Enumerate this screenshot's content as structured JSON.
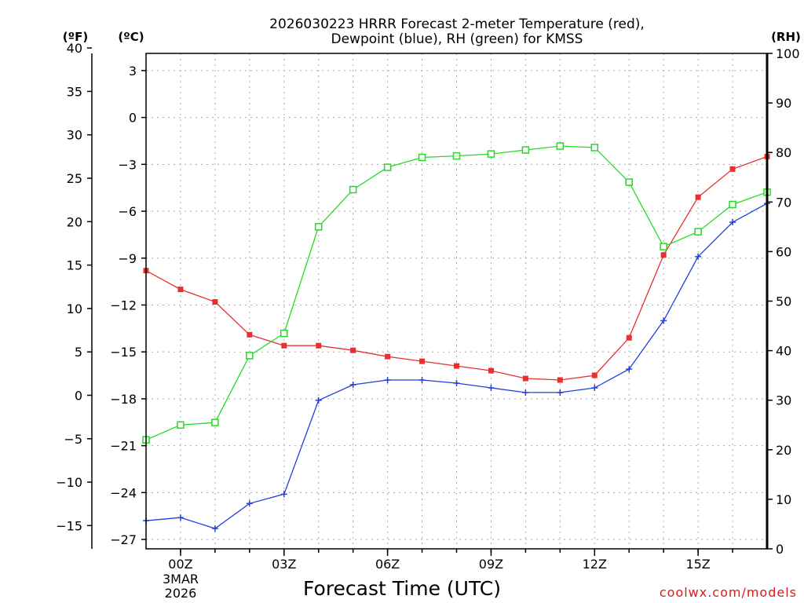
{
  "chart_data": {
    "type": "line",
    "title_line1": "2026030223 HRRR Forecast 2-meter Temperature (red),",
    "title_line2": "Dewpoint (blue), RH (green) for KMSS",
    "xlabel": "Forecast Time (UTC)",
    "credit": "coolwx.com/models",
    "unit_labels": {
      "fahrenheit": "(ºF)",
      "celsius": "(ºC)",
      "rh": "(RH)"
    },
    "date_label": {
      "day": "3MAR",
      "year": "2026"
    },
    "x_hours": [
      -1,
      0,
      1,
      2,
      3,
      4,
      5,
      6,
      7,
      8,
      9,
      10,
      11,
      12,
      13,
      14,
      15,
      16,
      17
    ],
    "x_ticks": [
      {
        "hour": 0,
        "label": "00Z"
      },
      {
        "hour": 3,
        "label": "03Z"
      },
      {
        "hour": 6,
        "label": "06Z"
      },
      {
        "hour": 9,
        "label": "09Z"
      },
      {
        "hour": 12,
        "label": "12Z"
      },
      {
        "hour": 15,
        "label": "15Z"
      }
    ],
    "xlim": [
      -1,
      17
    ],
    "celsius_axis": {
      "range": [
        -27.6,
        4.1
      ],
      "ticks": [
        3,
        0,
        -3,
        -6,
        -9,
        -12,
        -15,
        -18,
        -21,
        -24,
        -27
      ]
    },
    "fahrenheit_axis": {
      "range": [
        -17.68,
        39.38
      ],
      "ticks": [
        40,
        35,
        30,
        25,
        20,
        15,
        10,
        5,
        0,
        -5,
        -10,
        -15
      ]
    },
    "rh_axis": {
      "range": [
        0,
        100
      ],
      "ticks": [
        100,
        90,
        80,
        70,
        60,
        50,
        40,
        30,
        20,
        10,
        0
      ]
    },
    "series": [
      {
        "name": "2-meter Temperature",
        "units": "C",
        "color": "#e83030",
        "marker": "filled-square",
        "values": [
          -9.8,
          -11.0,
          -11.8,
          -13.9,
          -14.6,
          -14.6,
          -14.9,
          -15.3,
          -15.6,
          -15.9,
          -16.2,
          -16.7,
          -16.8,
          -16.5,
          -14.1,
          -8.8,
          -5.1,
          -3.3,
          -2.5
        ]
      },
      {
        "name": "Dewpoint",
        "units": "C",
        "color": "#2040e0",
        "marker": "plus",
        "values": [
          -25.8,
          -25.6,
          -26.3,
          -24.7,
          -24.1,
          -18.1,
          -17.1,
          -16.8,
          -16.8,
          -17.0,
          -17.3,
          -17.6,
          -17.6,
          -17.3,
          -16.1,
          -13.0,
          -8.9,
          -6.7,
          -5.5
        ]
      },
      {
        "name": "RH",
        "units": "%",
        "color": "#20dd20",
        "marker": "open-square",
        "values": [
          22,
          25,
          25.5,
          39,
          43.5,
          65,
          72.5,
          77,
          79,
          79.3,
          79.7,
          80.5,
          81.3,
          81,
          74,
          61,
          64,
          69.5,
          72
        ]
      }
    ]
  }
}
